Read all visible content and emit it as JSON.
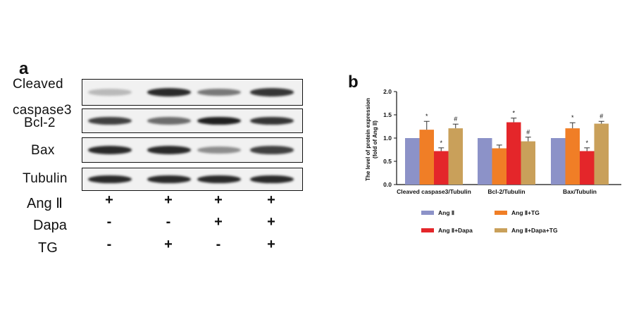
{
  "panel_a": {
    "letter": "a",
    "blot_labels": [
      "Cleaved",
      "caspase3",
      "Bcl-2",
      "Bax",
      "Tubulin"
    ],
    "treatment_rows": [
      {
        "label": "Ang Ⅱ",
        "values": [
          "+",
          "+",
          "+",
          "+"
        ]
      },
      {
        "label": "Dapa",
        "values": [
          "-",
          "-",
          "+",
          "+"
        ]
      },
      {
        "label": "TG",
        "values": [
          "-",
          "+",
          "-",
          "+"
        ]
      }
    ],
    "band_intensity": {
      "cleaved_caspase3": [
        0.25,
        0.9,
        0.55,
        0.85
      ],
      "bcl2": [
        0.8,
        0.6,
        0.95,
        0.85
      ],
      "bax": [
        0.9,
        0.9,
        0.45,
        0.8
      ],
      "tubulin": [
        0.9,
        0.9,
        0.9,
        0.9
      ]
    }
  },
  "panel_b": {
    "letter": "b"
  },
  "chart_data": {
    "type": "bar",
    "ylabel": "The level of protein expression\n(fold of Ang II)",
    "ylim": [
      0,
      2.0
    ],
    "yticks": [
      "0.0",
      "0.5",
      "1.0",
      "1.5",
      "2.0"
    ],
    "ytick_values": [
      0,
      0.5,
      1.0,
      1.5,
      2.0
    ],
    "categories": [
      "Cleaved caspase3/Tubulin",
      "Bcl-2/Tubulin",
      "Bax/Tubulin"
    ],
    "series": [
      {
        "name": "Ang Ⅱ",
        "color": "#8c92c8",
        "values": [
          1.0,
          1.0,
          1.0
        ],
        "errors": [
          0,
          0,
          0
        ],
        "marks": [
          "",
          "",
          ""
        ]
      },
      {
        "name": "Ang Ⅱ+TG",
        "color": "#f07e26",
        "values": [
          1.18,
          0.78,
          1.21
        ],
        "errors": [
          0.18,
          0.07,
          0.12
        ],
        "marks": [
          "*",
          "",
          "*"
        ]
      },
      {
        "name": "Ang Ⅱ+Dapa",
        "color": "#e4262a",
        "values": [
          0.72,
          1.34,
          0.72
        ],
        "errors": [
          0.07,
          0.09,
          0.07
        ],
        "marks": [
          "*",
          "*",
          "*"
        ]
      },
      {
        "name": "Ang Ⅱ+Dapa+TG",
        "color": "#c9a05a",
        "values": [
          1.21,
          0.93,
          1.31
        ],
        "errors": [
          0.09,
          0.09,
          0.05
        ],
        "marks": [
          "#",
          "#",
          "#"
        ]
      }
    ],
    "legend_position": "bottom",
    "grid": false
  }
}
